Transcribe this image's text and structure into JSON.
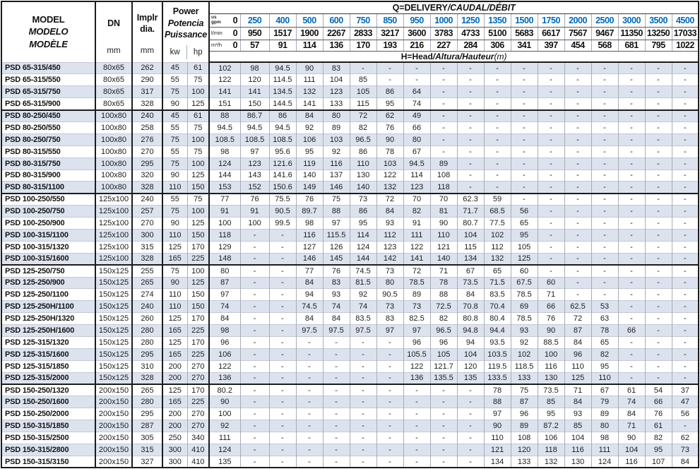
{
  "colors": {
    "accent_blue": "#0068b8",
    "band_row": "#dce3ef"
  },
  "table": {
    "header": {
      "model_title": "MODEL",
      "model_sub1": "MODELO",
      "model_sub2": "MODÈLE",
      "dn_label": "DN",
      "implr_line1": "Implr",
      "implr_line2": "dia.",
      "power_title": "Power",
      "power_sub1": "Potencia",
      "power_sub2": "Puissance",
      "mm_unit": "mm",
      "kw_unit": "kw",
      "hp_unit": "hp",
      "q_title_main": "Q=DELIVERY",
      "q_title_italic": "/CAUDAL/DÉBIT",
      "h_title_main": "H=Head",
      "h_title_italic": "/Altura/Hauteur",
      "h_title_unit": "(m)",
      "gpm_unit_top": "us",
      "gpm_unit_bottom": "gpm",
      "lmin_unit": "l/min",
      "m3h_unit": "m³/h",
      "gpm_values": [
        "0",
        "250",
        "400",
        "500",
        "600",
        "750",
        "850",
        "950",
        "1000",
        "1250",
        "1350",
        "1500",
        "1750",
        "2000",
        "2500",
        "3000",
        "3500",
        "4500"
      ],
      "lmin_values": [
        "0",
        "950",
        "1517",
        "1900",
        "2267",
        "2833",
        "3217",
        "3600",
        "3783",
        "4733",
        "5100",
        "5683",
        "6617",
        "7567",
        "9467",
        "11350",
        "13250",
        "17033"
      ],
      "m3h_values": [
        "0",
        "57",
        "91",
        "114",
        "136",
        "170",
        "193",
        "216",
        "227",
        "284",
        "306",
        "341",
        "397",
        "454",
        "568",
        "681",
        "795",
        "1022"
      ]
    },
    "group_breaks": [
      4,
      11,
      17,
      27
    ],
    "rows": [
      {
        "model": "PSD 65-315/450",
        "dn": "80x65",
        "dia": "262",
        "kw": "45",
        "hp": "61",
        "head": [
          "102",
          "98",
          "94.5",
          "90",
          "83",
          "-",
          "-",
          "-",
          "-",
          "-",
          "-",
          "-",
          "-",
          "-",
          "-",
          "-",
          "-",
          "-"
        ]
      },
      {
        "model": "PSD 65-315/550",
        "dn": "80x65",
        "dia": "290",
        "kw": "55",
        "hp": "75",
        "head": [
          "122",
          "120",
          "114.5",
          "111",
          "104",
          "85",
          "-",
          "-",
          "-",
          "-",
          "-",
          "-",
          "-",
          "-",
          "-",
          "-",
          "-",
          "-"
        ]
      },
      {
        "model": "PSD 65-315/750",
        "dn": "80x65",
        "dia": "317",
        "kw": "75",
        "hp": "100",
        "head": [
          "141",
          "141",
          "134.5",
          "132",
          "123",
          "105",
          "86",
          "64",
          "-",
          "-",
          "-",
          "-",
          "-",
          "-",
          "-",
          "-",
          "-",
          "-"
        ]
      },
      {
        "model": "PSD 65-315/900",
        "dn": "80x65",
        "dia": "328",
        "kw": "90",
        "hp": "125",
        "head": [
          "151",
          "150",
          "144.5",
          "141",
          "133",
          "115",
          "95",
          "74",
          "-",
          "-",
          "-",
          "-",
          "-",
          "-",
          "-",
          "-",
          "-",
          "-"
        ]
      },
      {
        "model": "PSD 80-250/450",
        "dn": "100x80",
        "dia": "240",
        "kw": "45",
        "hp": "61",
        "head": [
          "88",
          "86.7",
          "86",
          "84",
          "80",
          "72",
          "62",
          "49",
          "-",
          "-",
          "-",
          "-",
          "-",
          "-",
          "-",
          "-",
          "-",
          "-"
        ]
      },
      {
        "model": "PSD 80-250/550",
        "dn": "100x80",
        "dia": "258",
        "kw": "55",
        "hp": "75",
        "head": [
          "94.5",
          "94.5",
          "94.5",
          "92",
          "89",
          "82",
          "76",
          "66",
          "-",
          "-",
          "-",
          "-",
          "-",
          "-",
          "-",
          "-",
          "-",
          "-"
        ]
      },
      {
        "model": "PSD 80-250/750",
        "dn": "100x80",
        "dia": "276",
        "kw": "75",
        "hp": "100",
        "head": [
          "108.5",
          "108.5",
          "108.5",
          "106",
          "103",
          "96.5",
          "90",
          "80",
          "-",
          "-",
          "-",
          "-",
          "-",
          "-",
          "-",
          "-",
          "-",
          "-"
        ]
      },
      {
        "model": "PSD 80-315/550",
        "dn": "100x80",
        "dia": "270",
        "kw": "55",
        "hp": "75",
        "head": [
          "98",
          "97",
          "95.6",
          "95",
          "92",
          "86",
          "78",
          "67",
          "-",
          "-",
          "-",
          "-",
          "-",
          "-",
          "-",
          "-",
          "-",
          "-"
        ]
      },
      {
        "model": "PSD 80-315/750",
        "dn": "100x80",
        "dia": "295",
        "kw": "75",
        "hp": "100",
        "head": [
          "124",
          "123",
          "121.6",
          "119",
          "116",
          "110",
          "103",
          "94.5",
          "89",
          "-",
          "-",
          "-",
          "-",
          "-",
          "-",
          "-",
          "-",
          "-"
        ]
      },
      {
        "model": "PSD 80-315/900",
        "dn": "100x80",
        "dia": "320",
        "kw": "90",
        "hp": "125",
        "head": [
          "144",
          "143",
          "141.6",
          "140",
          "137",
          "130",
          "122",
          "114",
          "108",
          "-",
          "-",
          "-",
          "-",
          "-",
          "-",
          "-",
          "-",
          "-"
        ]
      },
      {
        "model": "PSD 80-315/1100",
        "dn": "100x80",
        "dia": "328",
        "kw": "110",
        "hp": "150",
        "head": [
          "153",
          "152",
          "150.6",
          "149",
          "146",
          "140",
          "132",
          "123",
          "118",
          "-",
          "-",
          "-",
          "-",
          "-",
          "-",
          "-",
          "-",
          "-"
        ]
      },
      {
        "model": "PSD 100-250/550",
        "dn": "125x100",
        "dia": "240",
        "kw": "55",
        "hp": "75",
        "head": [
          "77",
          "76",
          "75.5",
          "76",
          "75",
          "73",
          "72",
          "70",
          "70",
          "62.3",
          "59",
          "-",
          "-",
          "-",
          "-",
          "-",
          "-",
          "-"
        ]
      },
      {
        "model": "PSD 100-250/750",
        "dn": "125x100",
        "dia": "257",
        "kw": "75",
        "hp": "100",
        "head": [
          "91",
          "91",
          "90.5",
          "89.7",
          "88",
          "86",
          "84",
          "82",
          "81",
          "71.7",
          "68.5",
          "56",
          "-",
          "-",
          "-",
          "-",
          "-",
          "-"
        ]
      },
      {
        "model": "PSD 100-250/900",
        "dn": "125x100",
        "dia": "270",
        "kw": "90",
        "hp": "125",
        "head": [
          "100",
          "100",
          "99.5",
          "98",
          "97",
          "95",
          "93",
          "91",
          "90",
          "80.7",
          "77.5",
          "65",
          "-",
          "-",
          "-",
          "-",
          "-",
          "-"
        ]
      },
      {
        "model": "PSD 100-315/1100",
        "dn": "125x100",
        "dia": "300",
        "kw": "110",
        "hp": "150",
        "head": [
          "118",
          "-",
          "-",
          "116",
          "115.5",
          "114",
          "112",
          "111",
          "110",
          "104",
          "102",
          "95",
          "-",
          "-",
          "-",
          "-",
          "-",
          "-"
        ]
      },
      {
        "model": "PSD 100-315/1320",
        "dn": "125x100",
        "dia": "315",
        "kw": "125",
        "hp": "170",
        "head": [
          "129",
          "-",
          "-",
          "127",
          "126",
          "124",
          "123",
          "122",
          "121",
          "115",
          "112",
          "105",
          "-",
          "-",
          "-",
          "-",
          "-",
          "-"
        ]
      },
      {
        "model": "PSD 100-315/1600",
        "dn": "125x100",
        "dia": "328",
        "kw": "165",
        "hp": "225",
        "head": [
          "148",
          "-",
          "-",
          "146",
          "145",
          "144",
          "142",
          "141",
          "140",
          "134",
          "132",
          "125",
          "-",
          "-",
          "-",
          "-",
          "-",
          "-"
        ]
      },
      {
        "model": "PSD 125-250/750",
        "dn": "150x125",
        "dia": "255",
        "kw": "75",
        "hp": "100",
        "head": [
          "80",
          "-",
          "-",
          "77",
          "76",
          "74.5",
          "73",
          "72",
          "71",
          "67",
          "65",
          "60",
          "-",
          "-",
          "-",
          "-",
          "-",
          "-"
        ]
      },
      {
        "model": "PSD 125-250/900",
        "dn": "150x125",
        "dia": "265",
        "kw": "90",
        "hp": "125",
        "head": [
          "87",
          "-",
          "-",
          "84",
          "83",
          "81.5",
          "80",
          "78.5",
          "78",
          "73.5",
          "71.5",
          "67.5",
          "60",
          "-",
          "-",
          "-",
          "-",
          "-"
        ]
      },
      {
        "model": "PSD 125-250/1100",
        "dn": "150x125",
        "dia": "274",
        "kw": "110",
        "hp": "150",
        "head": [
          "97",
          "-",
          "-",
          "94",
          "93",
          "92",
          "90.5",
          "89",
          "88",
          "84",
          "83.5",
          "78.5",
          "71",
          "-",
          "-",
          "-",
          "-",
          "-"
        ]
      },
      {
        "model": "PSD 125-250H/1100",
        "dn": "150x125",
        "dia": "240",
        "kw": "110",
        "hp": "150",
        "head": [
          "74",
          "-",
          "-",
          "74.5",
          "74",
          "74",
          "73",
          "73",
          "72.5",
          "70.8",
          "70.4",
          "69",
          "66",
          "62.5",
          "53",
          "-",
          "-",
          "-"
        ]
      },
      {
        "model": "PSD 125-250H/1320",
        "dn": "150x125",
        "dia": "260",
        "kw": "125",
        "hp": "170",
        "head": [
          "84",
          "-",
          "-",
          "84",
          "84",
          "83.5",
          "83",
          "82.5",
          "82",
          "80.8",
          "80.4",
          "78.5",
          "76",
          "72",
          "63",
          "-",
          "-",
          "-"
        ]
      },
      {
        "model": "PSD 125-250H/1600",
        "dn": "150x125",
        "dia": "280",
        "kw": "165",
        "hp": "225",
        "head": [
          "98",
          "-",
          "-",
          "97.5",
          "97.5",
          "97.5",
          "97",
          "97",
          "96.5",
          "94.8",
          "94.4",
          "93",
          "90",
          "87",
          "78",
          "66",
          "-",
          "-"
        ]
      },
      {
        "model": "PSD 125-315/1320",
        "dn": "150x125",
        "dia": "280",
        "kw": "125",
        "hp": "170",
        "head": [
          "96",
          "-",
          "-",
          "-",
          "-",
          "-",
          "-",
          "96",
          "96",
          "94",
          "93.5",
          "92",
          "88.5",
          "84",
          "65",
          "-",
          "-",
          "-"
        ]
      },
      {
        "model": "PSD 125-315/1600",
        "dn": "150x125",
        "dia": "295",
        "kw": "165",
        "hp": "225",
        "head": [
          "106",
          "-",
          "-",
          "-",
          "-",
          "-",
          "-",
          "105.5",
          "105",
          "104",
          "103.5",
          "102",
          "100",
          "96",
          "82",
          "-",
          "-",
          "-"
        ]
      },
      {
        "model": "PSD 125-315/1850",
        "dn": "150x125",
        "dia": "310",
        "kw": "200",
        "hp": "270",
        "head": [
          "122",
          "-",
          "-",
          "-",
          "-",
          "-",
          "-",
          "122",
          "121.7",
          "120",
          "119.5",
          "118.5",
          "116",
          "110",
          "95",
          "-",
          "-",
          "-"
        ]
      },
      {
        "model": "PSD 125-315/2000",
        "dn": "150x125",
        "dia": "328",
        "kw": "200",
        "hp": "270",
        "head": [
          "136",
          "-",
          "-",
          "-",
          "-",
          "-",
          "-",
          "136",
          "135.5",
          "135",
          "133.5",
          "133",
          "130",
          "125",
          "110",
          "-",
          "-",
          "-"
        ]
      },
      {
        "model": "PSD 150-250/1320",
        "dn": "200x150",
        "dia": "265",
        "kw": "125",
        "hp": "170",
        "head": [
          "80.2",
          "-",
          "-",
          "-",
          "-",
          "-",
          "-",
          "-",
          "-",
          "-",
          "78",
          "75",
          "73.5",
          "71",
          "67",
          "61",
          "54",
          "37"
        ]
      },
      {
        "model": "PSD 150-250/1600",
        "dn": "200x150",
        "dia": "280",
        "kw": "165",
        "hp": "225",
        "head": [
          "90",
          "-",
          "-",
          "-",
          "-",
          "-",
          "-",
          "-",
          "-",
          "-",
          "88",
          "87",
          "85",
          "84",
          "79",
          "74",
          "66",
          "47"
        ]
      },
      {
        "model": "PSD 150-250/2000",
        "dn": "200x150",
        "dia": "295",
        "kw": "200",
        "hp": "270",
        "head": [
          "100",
          "-",
          "-",
          "-",
          "-",
          "-",
          "-",
          "-",
          "-",
          "-",
          "97",
          "96",
          "95",
          "93",
          "89",
          "84",
          "76",
          "56"
        ]
      },
      {
        "model": "PSD 150-315/1850",
        "dn": "200x150",
        "dia": "287",
        "kw": "200",
        "hp": "270",
        "head": [
          "92",
          "-",
          "-",
          "-",
          "-",
          "-",
          "-",
          "-",
          "-",
          "-",
          "90",
          "89",
          "87.2",
          "85",
          "80",
          "71",
          "61",
          "-"
        ]
      },
      {
        "model": "PSD 150-315/2500",
        "dn": "200x150",
        "dia": "305",
        "kw": "250",
        "hp": "340",
        "head": [
          "111",
          "-",
          "-",
          "-",
          "-",
          "-",
          "-",
          "-",
          "-",
          "-",
          "110",
          "108",
          "106",
          "104",
          "98",
          "90",
          "82",
          "62"
        ]
      },
      {
        "model": "PSD 150-315/2800",
        "dn": "200x150",
        "dia": "315",
        "kw": "300",
        "hp": "410",
        "head": [
          "124",
          "-",
          "-",
          "-",
          "-",
          "-",
          "-",
          "-",
          "-",
          "-",
          "121",
          "120",
          "118",
          "116",
          "111",
          "104",
          "95",
          "73"
        ]
      },
      {
        "model": "PSD 150-315/3150",
        "dn": "200x150",
        "dia": "327",
        "kw": "300",
        "hp": "410",
        "head": [
          "135",
          "-",
          "-",
          "-",
          "-",
          "-",
          "-",
          "-",
          "-",
          "-",
          "134",
          "133",
          "132",
          "130",
          "124",
          "116",
          "107",
          "84"
        ]
      }
    ]
  }
}
